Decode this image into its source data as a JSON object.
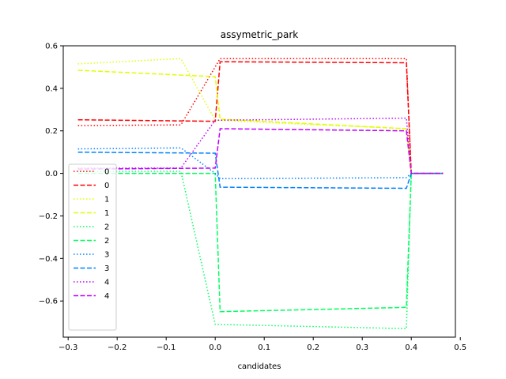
{
  "chart_data": {
    "type": "line",
    "title": "assymetric_park",
    "xlabel": "candidates",
    "ylabel": "",
    "xlim": [
      -0.31,
      0.49
    ],
    "ylim": [
      -0.77,
      0.6
    ],
    "xticks": [
      -0.3,
      -0.2,
      -0.1,
      0.0,
      0.1,
      0.2,
      0.3,
      0.4,
      0.5
    ],
    "xtick_labels": [
      "−0.3",
      "−0.2",
      "−0.1",
      "0.0",
      "0.1",
      "0.2",
      "0.3",
      "0.4",
      "0.5"
    ],
    "yticks": [
      -0.6,
      -0.4,
      -0.2,
      0.0,
      0.2,
      0.4,
      0.6
    ],
    "ytick_labels": [
      "−0.6",
      "−0.4",
      "−0.2",
      "0.0",
      "0.2",
      "0.4",
      "0.6"
    ],
    "legend_position": "lower-left",
    "grid": false,
    "series": [
      {
        "name": "0",
        "color": "#ff0000",
        "style": "dotted",
        "x": [
          -0.28,
          -0.07,
          0.01,
          0.39,
          0.4,
          0.465
        ],
        "y": [
          0.225,
          0.228,
          0.54,
          0.54,
          0.0,
          0.0
        ]
      },
      {
        "name": "0",
        "color": "#ff0000",
        "style": "dashed",
        "x": [
          -0.28,
          0.0,
          0.01,
          0.39,
          0.4,
          0.465
        ],
        "y": [
          0.252,
          0.245,
          0.525,
          0.52,
          0.0,
          0.0
        ]
      },
      {
        "name": "1",
        "color": "#e0ff00",
        "style": "dotted",
        "x": [
          -0.28,
          -0.07,
          0.0,
          0.39,
          0.4,
          0.465
        ],
        "y": [
          0.515,
          0.54,
          0.25,
          0.21,
          0.0,
          0.0
        ]
      },
      {
        "name": "1",
        "color": "#e0ff00",
        "style": "dashed",
        "x": [
          -0.28,
          0.0,
          0.01,
          0.39,
          0.4,
          0.465
        ],
        "y": [
          0.485,
          0.455,
          0.255,
          0.21,
          0.0,
          0.0
        ]
      },
      {
        "name": "2",
        "color": "#00ff60",
        "style": "dotted",
        "x": [
          -0.28,
          -0.07,
          0.0,
          0.39,
          0.4,
          0.465
        ],
        "y": [
          0.01,
          0.01,
          -0.71,
          -0.73,
          0.0,
          0.0
        ]
      },
      {
        "name": "2",
        "color": "#00ff60",
        "style": "dashed",
        "x": [
          -0.28,
          0.0,
          0.01,
          0.39,
          0.4,
          0.465
        ],
        "y": [
          0.0,
          0.0,
          -0.65,
          -0.63,
          0.0,
          0.0
        ]
      },
      {
        "name": "3",
        "color": "#0080ff",
        "style": "dotted",
        "x": [
          -0.28,
          -0.07,
          0.0,
          0.01,
          0.39,
          0.4,
          0.465
        ],
        "y": [
          0.115,
          0.12,
          0.0,
          -0.025,
          -0.02,
          0.0,
          0.0
        ]
      },
      {
        "name": "3",
        "color": "#0080ff",
        "style": "dashed",
        "x": [
          -0.28,
          0.0,
          0.01,
          0.39,
          0.4,
          0.465
        ],
        "y": [
          0.1,
          0.095,
          -0.065,
          -0.07,
          0.0,
          0.0
        ]
      },
      {
        "name": "4",
        "color": "#c000ff",
        "style": "dotted",
        "x": [
          -0.28,
          -0.07,
          0.0,
          0.39,
          0.4,
          0.465
        ],
        "y": [
          0.025,
          0.025,
          0.25,
          0.26,
          0.0,
          0.0
        ]
      },
      {
        "name": "4",
        "color": "#c000ff",
        "style": "dashed",
        "x": [
          -0.28,
          0.0,
          0.01,
          0.39,
          0.4,
          0.465
        ],
        "y": [
          0.02,
          0.025,
          0.21,
          0.2,
          0.0,
          0.0
        ]
      }
    ]
  }
}
